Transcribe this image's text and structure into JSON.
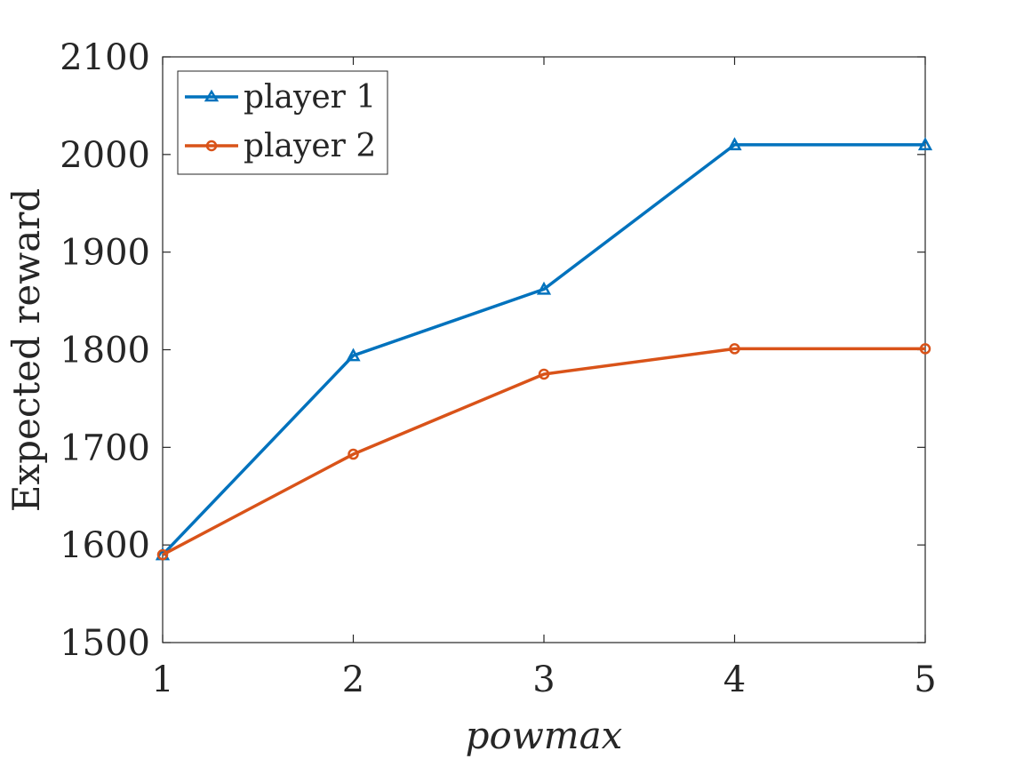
{
  "chart_data": {
    "type": "line",
    "title": "",
    "xlabel": "powmax",
    "ylabel": "Expected reward",
    "x": [
      1,
      2,
      3,
      4,
      5
    ],
    "xlim": [
      1,
      5
    ],
    "ylim": [
      1500,
      2100
    ],
    "xticks": [
      "1",
      "2",
      "3",
      "4",
      "5"
    ],
    "yticks": [
      "1500",
      "1600",
      "1700",
      "1800",
      "1900",
      "2000",
      "2100"
    ],
    "grid": false,
    "legend_position": "top-left",
    "series": [
      {
        "name": "player 1",
        "marker": "triangle",
        "color": "#0072BD",
        "values": [
          1590,
          1794,
          1862,
          2010,
          2010
        ]
      },
      {
        "name": "player 2",
        "marker": "circle",
        "color": "#D95319",
        "values": [
          1590,
          1693,
          1775,
          1801,
          1801
        ]
      }
    ]
  }
}
